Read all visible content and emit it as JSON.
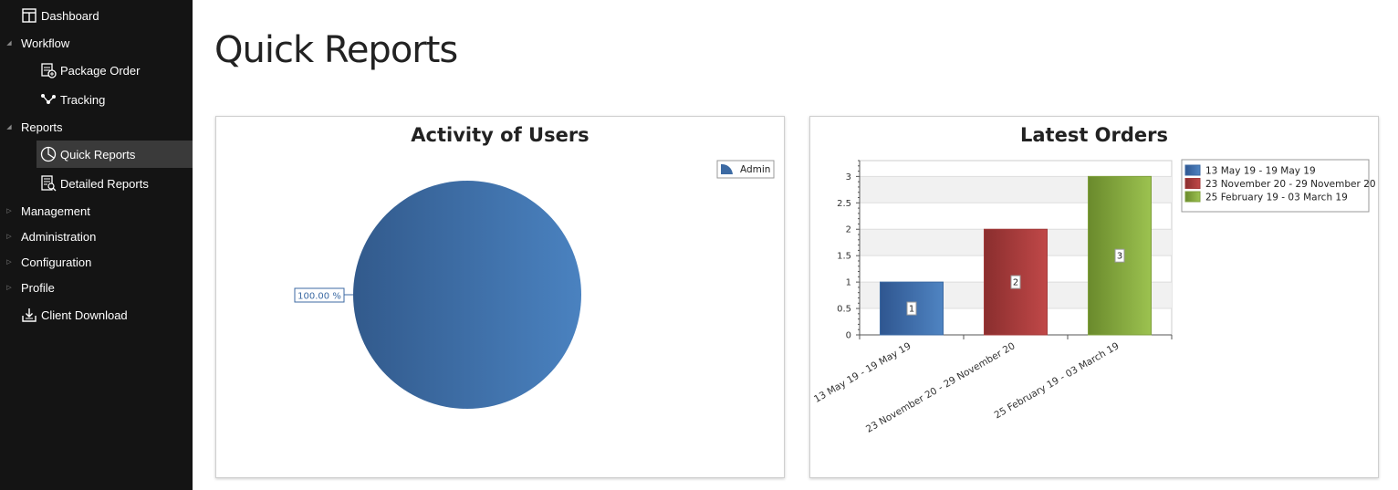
{
  "sidebar": {
    "items": [
      {
        "label": "Dashboard",
        "icon": "dashboard-icon"
      },
      {
        "label": "Workflow",
        "icon": "expand-arrow-icon"
      },
      {
        "label": "Package Order",
        "icon": "package-order-icon"
      },
      {
        "label": "Tracking",
        "icon": "tracking-icon"
      },
      {
        "label": "Reports",
        "icon": "expand-arrow-icon"
      },
      {
        "label": "Quick Reports",
        "icon": "pie-chart-icon"
      },
      {
        "label": "Detailed Reports",
        "icon": "detailed-report-icon"
      },
      {
        "label": "Management",
        "icon": "collapse-arrow-icon"
      },
      {
        "label": "Administration",
        "icon": "collapse-arrow-icon"
      },
      {
        "label": "Configuration",
        "icon": "collapse-arrow-icon"
      },
      {
        "label": "Profile",
        "icon": "collapse-arrow-icon"
      },
      {
        "label": "Client Download",
        "icon": "download-icon"
      }
    ],
    "selected": "Quick Reports"
  },
  "main": {
    "title": "Quick Reports"
  },
  "chart_data": [
    {
      "type": "pie",
      "title": "Activity of Users",
      "slices": [
        {
          "label": "Admin",
          "value": 100,
          "display": "100.00 %",
          "color": "#3c6aa3"
        }
      ],
      "legend": "top-right"
    },
    {
      "type": "bar",
      "title": "Latest Orders",
      "categories": [
        "13 May 19 - 19 May 19",
        "23 November 20 - 29 November 20",
        "25 February 19 - 03 March 19"
      ],
      "values": [
        1,
        2,
        3
      ],
      "value_labels": [
        "1",
        "2",
        "3"
      ],
      "colors": [
        "#3c6aa3",
        "#a33a3a",
        "#7fa03c"
      ],
      "yticks": [
        "0",
        "0.5",
        "1",
        "1.5",
        "2",
        "2.5",
        "3"
      ],
      "ylim": [
        0,
        3.3
      ],
      "legend": "top-right",
      "grid": true
    }
  ]
}
